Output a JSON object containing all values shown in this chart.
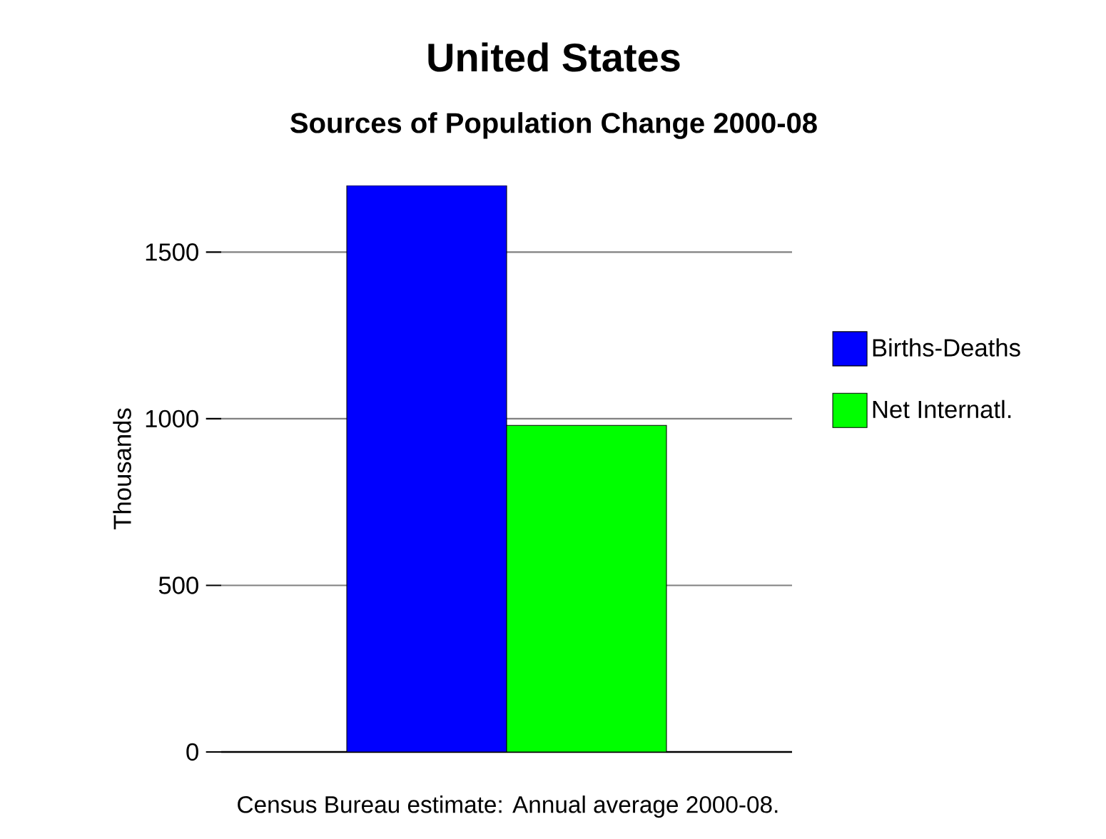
{
  "chart_data": {
    "type": "bar",
    "title": "United States",
    "subtitle": "Sources of Population Change 2000-08",
    "ylabel": "Thousands",
    "categories": [
      null
    ],
    "series": [
      {
        "name": "Births-Deaths",
        "color": "#0000ff",
        "values": [
          1700
        ]
      },
      {
        "name": "Net Internatl.",
        "color": "#00ff00",
        "values": [
          980
        ]
      }
    ],
    "ylim": [
      0,
      1700
    ],
    "yticks": [
      0,
      500,
      1000,
      1500
    ],
    "grid": "y",
    "legend": "right",
    "annotations": [
      "Census Bureau estimate: Annual average 2000-08."
    ]
  }
}
